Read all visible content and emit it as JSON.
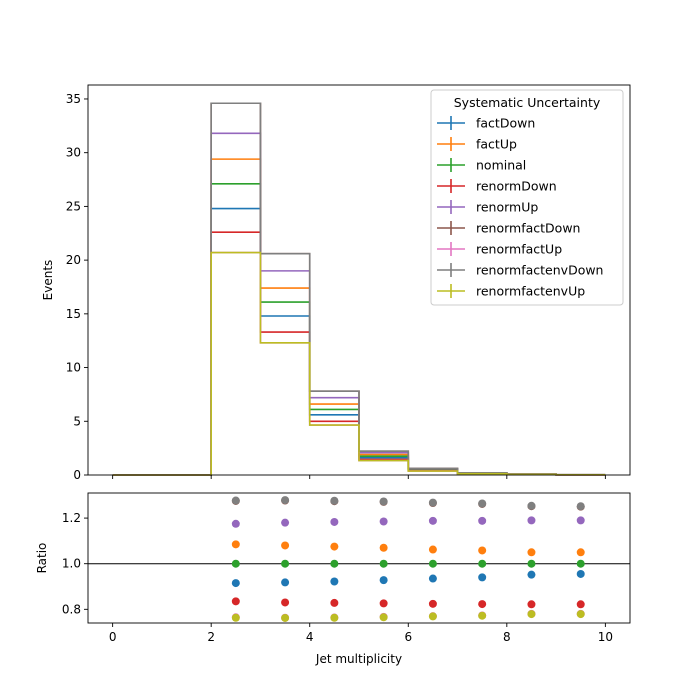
{
  "chart_data": [
    {
      "type": "step",
      "xlabel": "",
      "ylabel": "Events",
      "xlim": [
        -0.5,
        10.5
      ],
      "ylim": [
        0,
        36.3
      ],
      "xticks": [
        0,
        2,
        4,
        6,
        8,
        10
      ],
      "yticks": [
        0,
        5,
        10,
        15,
        20,
        25,
        30,
        35
      ],
      "bin_edges": [
        0,
        1,
        2,
        3,
        4,
        5,
        6,
        7,
        8,
        9,
        10
      ],
      "legend": {
        "title": "Systematic Uncertainty",
        "placement": "top-right"
      },
      "series": [
        {
          "name": "factDown",
          "color": "#1f77b4",
          "values": [
            0,
            0,
            24.8,
            14.8,
            5.6,
            1.6,
            0.45,
            0.15,
            0.07,
            0.02
          ]
        },
        {
          "name": "factUp",
          "color": "#ff7f0e",
          "values": [
            0,
            0,
            29.4,
            17.4,
            6.6,
            1.9,
            0.52,
            0.17,
            0.08,
            0.02
          ]
        },
        {
          "name": "nominal",
          "color": "#2ca02c",
          "values": [
            0,
            0,
            27.1,
            16.1,
            6.1,
            1.75,
            0.48,
            0.16,
            0.07,
            0.02
          ]
        },
        {
          "name": "renormDown",
          "color": "#d62728",
          "values": [
            0,
            0,
            22.6,
            13.3,
            5.0,
            1.45,
            0.4,
            0.13,
            0.06,
            0.02
          ]
        },
        {
          "name": "renormUp",
          "color": "#9467bd",
          "values": [
            0,
            0,
            31.8,
            19.0,
            7.2,
            2.07,
            0.57,
            0.19,
            0.09,
            0.02
          ]
        },
        {
          "name": "renormfactDown",
          "color": "#8c564b",
          "values": [
            0,
            0,
            34.6,
            20.6,
            7.8,
            2.22,
            0.61,
            0.2,
            0.09,
            0.03
          ]
        },
        {
          "name": "renormfactUp",
          "color": "#e377c2",
          "values": [
            0,
            0,
            20.7,
            12.3,
            4.65,
            1.34,
            0.37,
            0.12,
            0.05,
            0.02
          ]
        },
        {
          "name": "renormfactenvDown",
          "color": "#7f7f7f",
          "values": [
            0,
            0,
            34.6,
            20.6,
            7.8,
            2.22,
            0.61,
            0.2,
            0.09,
            0.03
          ]
        },
        {
          "name": "renormfactenvUp",
          "color": "#bcbd22",
          "values": [
            0,
            0,
            20.7,
            12.3,
            4.65,
            1.34,
            0.37,
            0.12,
            0.05,
            0.02
          ]
        }
      ]
    },
    {
      "type": "scatter",
      "xlabel": "Jet multiplicity",
      "ylabel": "Ratio",
      "xlim": [
        -0.5,
        10.5
      ],
      "ylim": [
        0.74,
        1.31
      ],
      "xticks": [
        0,
        2,
        4,
        6,
        8,
        10
      ],
      "yticks": [
        0.8,
        1.0,
        1.2
      ],
      "reference_line": 1.0,
      "x": [
        2.5,
        3.5,
        4.5,
        5.5,
        6.5,
        7.5,
        8.5,
        9.5
      ],
      "series": [
        {
          "name": "factDown",
          "color": "#1f77b4",
          "values": [
            0.915,
            0.918,
            0.922,
            0.928,
            0.935,
            0.94,
            0.952,
            0.955
          ]
        },
        {
          "name": "factUp",
          "color": "#ff7f0e",
          "values": [
            1.085,
            1.08,
            1.075,
            1.07,
            1.062,
            1.058,
            1.05,
            1.05
          ]
        },
        {
          "name": "nominal",
          "color": "#2ca02c",
          "values": [
            1.0,
            1.0,
            1.0,
            1.0,
            1.0,
            1.0,
            1.0,
            1.0
          ]
        },
        {
          "name": "renormDown",
          "color": "#d62728",
          "values": [
            0.835,
            0.83,
            0.828,
            0.826,
            0.824,
            0.823,
            0.822,
            0.822
          ]
        },
        {
          "name": "renormUp",
          "color": "#9467bd",
          "values": [
            1.175,
            1.18,
            1.183,
            1.185,
            1.188,
            1.188,
            1.19,
            1.19
          ]
        },
        {
          "name": "renormfactDown",
          "color": "#8c564b",
          "values": [
            1.275,
            1.277,
            1.274,
            1.271,
            1.266,
            1.262,
            1.252,
            1.25
          ]
        },
        {
          "name": "renormfactUp",
          "color": "#e377c2",
          "values": [
            0.765,
            0.763,
            0.764,
            0.767,
            0.77,
            0.773,
            0.78,
            0.78
          ]
        },
        {
          "name": "renormfactenvDown",
          "color": "#7f7f7f",
          "values": [
            1.277,
            1.279,
            1.276,
            1.273,
            1.268,
            1.264,
            1.254,
            1.252
          ]
        },
        {
          "name": "renormfactenvUp",
          "color": "#bcbd22",
          "values": [
            0.763,
            0.762,
            0.763,
            0.765,
            0.769,
            0.772,
            0.779,
            0.779
          ]
        }
      ]
    }
  ]
}
